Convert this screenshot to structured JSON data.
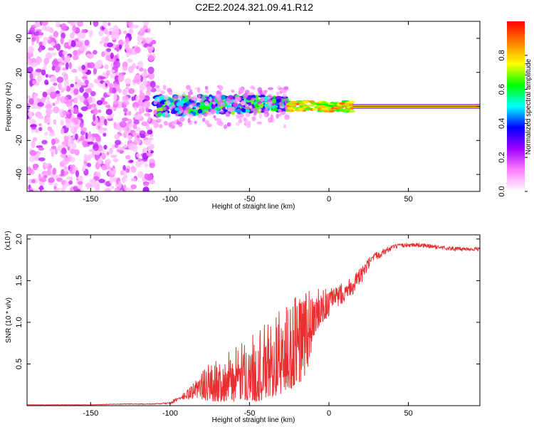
{
  "title": "C2E2.2024.321.09.41.R12",
  "chart_data": [
    {
      "type": "heatmap",
      "xlabel": "Height of straight line (km)",
      "ylabel": "Frequency (Hz)",
      "xlim": [
        -190,
        95
      ],
      "ylim": [
        -50,
        50
      ],
      "xticks": [
        -150,
        -100,
        -50,
        0,
        50
      ],
      "yticks": [
        -40,
        -20,
        0,
        20,
        40
      ],
      "colorbar": {
        "label": "Normalized spectral amplitude",
        "range": [
          0,
          1
        ],
        "ticks": [
          0.0,
          0.2,
          0.4,
          0.6,
          0.8
        ],
        "colors": [
          "#ffffff",
          "#ff80ff",
          "#a000ff",
          "#0000ff",
          "#00ffff",
          "#00ff00",
          "#ffff00",
          "#ff8000",
          "#ff0000"
        ]
      },
      "regions": [
        {
          "x": [
            -190,
            -110
          ],
          "freq": [
            -50,
            50
          ],
          "amplitude": [
            0.05,
            0.25
          ]
        },
        {
          "x": [
            -110,
            -25
          ],
          "freq": [
            -6,
            6
          ],
          "amplitude": [
            0.2,
            0.7
          ]
        },
        {
          "x": [
            -25,
            15
          ],
          "freq": [
            -3,
            3
          ],
          "amplitude": [
            0.6,
            0.9
          ]
        },
        {
          "x": [
            15,
            95
          ],
          "freq": [
            -1,
            1
          ],
          "amplitude": [
            0.9,
            1.0
          ]
        }
      ]
    },
    {
      "type": "line",
      "xlabel": "Height of straight line (km)",
      "ylabel": "SNR (10 * v/v)",
      "y_multiplier": "(x10⁴)",
      "xlim": [
        -190,
        95
      ],
      "ylim": [
        0,
        2.05
      ],
      "xticks": [
        -150,
        -100,
        -50,
        0,
        50
      ],
      "yticks": [
        0.5,
        1.0,
        1.5,
        2.0
      ],
      "ytick_labels": [
        "0.5",
        "1.0",
        "1.5",
        "2.0"
      ],
      "line_color": "#e83030",
      "series": [
        {
          "x": [
            -190,
            -170,
            -150,
            -130,
            -110,
            -100,
            -95,
            -90,
            -85,
            -80,
            -75,
            -70,
            -65,
            -60,
            -55,
            -50,
            -45,
            -40,
            -35,
            -30,
            -25,
            -20,
            -15,
            -10,
            -5,
            0,
            5,
            10,
            15,
            20,
            25,
            30,
            35,
            40,
            45,
            50,
            55,
            60,
            70,
            80,
            90,
            95
          ],
          "values": [
            0.01,
            0.01,
            0.01,
            0.02,
            0.02,
            0.03,
            0.08,
            0.12,
            0.18,
            0.25,
            0.3,
            0.32,
            0.35,
            0.38,
            0.42,
            0.46,
            0.5,
            0.55,
            0.62,
            0.68,
            0.75,
            0.85,
            0.95,
            1.1,
            1.2,
            1.25,
            1.3,
            1.38,
            1.45,
            1.55,
            1.7,
            1.8,
            1.85,
            1.9,
            1.92,
            1.93,
            1.93,
            1.92,
            1.9,
            1.88,
            1.88,
            1.88
          ],
          "spread": [
            0.005,
            0.005,
            0.005,
            0.008,
            0.01,
            0.02,
            0.06,
            0.1,
            0.2,
            0.3,
            0.4,
            0.45,
            0.5,
            0.55,
            0.6,
            0.65,
            0.75,
            0.8,
            0.85,
            0.9,
            0.95,
            1.0,
            1.05,
            0.6,
            0.35,
            0.3,
            0.25,
            0.25,
            0.25,
            0.2,
            0.15,
            0.1,
            0.08,
            0.06,
            0.05,
            0.05,
            0.05,
            0.05,
            0.05,
            0.05,
            0.05,
            0.05
          ]
        }
      ]
    }
  ]
}
